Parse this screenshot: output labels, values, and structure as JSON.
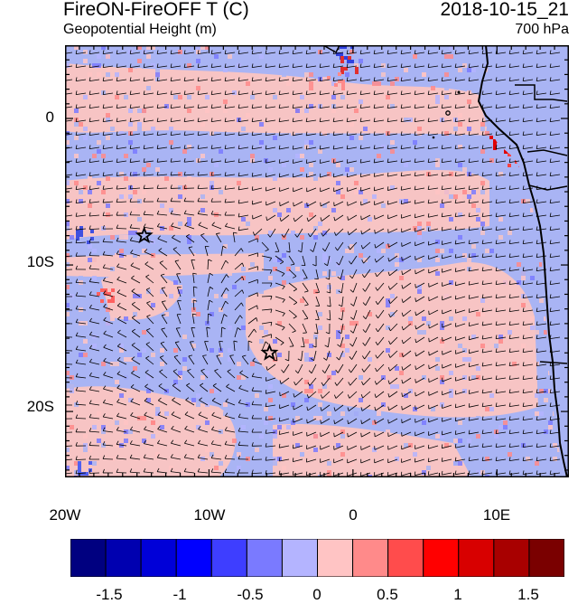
{
  "header": {
    "title_left": "FireON-FireOFF T (C)",
    "subtitle_left": "Geopotential Height (m)",
    "title_right": "2018-10-15_21",
    "subtitle_right": "700 hPa"
  },
  "map": {
    "lon_range": [
      -20,
      15
    ],
    "lat_range": [
      -24.5,
      5
    ],
    "x_tick_labels": [
      "20W",
      "10W",
      "0",
      "10E"
    ],
    "y_tick_labels": [
      "0",
      "10S",
      "20S"
    ],
    "star_markers": [
      {
        "lon": -14.5,
        "lat": -8
      },
      {
        "lon": -5.8,
        "lat": -16
      }
    ],
    "field_colors": {
      "negative": "#a9b4f4",
      "positive": "#f7c4c4",
      "land_coast": "#000000"
    }
  },
  "colorbar": {
    "labels": [
      "-1.5",
      "-1",
      "-0.5",
      "0",
      "0.5",
      "1",
      "1.5"
    ],
    "colors": [
      "#000080",
      "#0000b0",
      "#0000d8",
      "#0000ff",
      "#3e3eff",
      "#7a7aff",
      "#b4b4ff",
      "#ffc4c4",
      "#ff8a8a",
      "#ff4c4c",
      "#ff0000",
      "#d80000",
      "#a80000",
      "#7a0000"
    ]
  }
}
